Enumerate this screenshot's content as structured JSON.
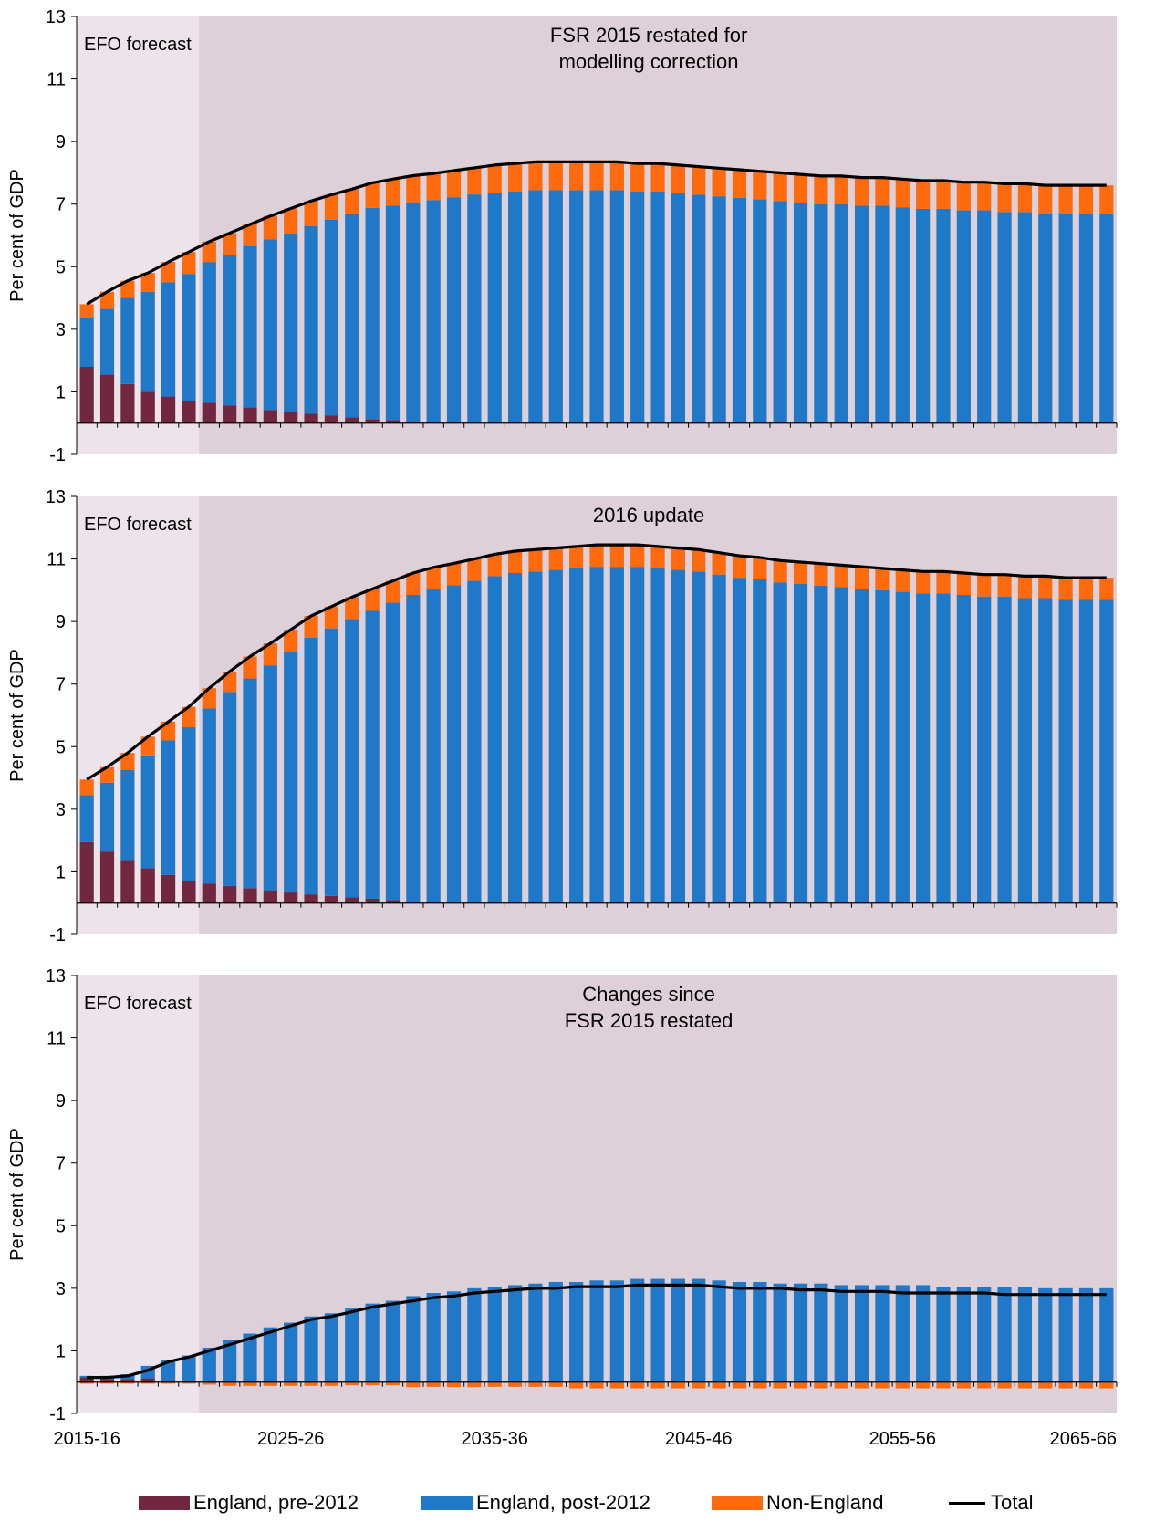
{
  "colors": {
    "pre2012": "#722741",
    "post2012": "#1f78c8",
    "nonengland": "#ff6a0d",
    "total": "#000000",
    "efo_shade": "#ece4ea",
    "proj_shade": "#ddd0d8"
  },
  "legend": {
    "pre2012": "England, pre-2012",
    "post2012": "England, post-2012",
    "nonengland": "Non-England",
    "total": "Total"
  },
  "chart_data": [
    {
      "type": "bar",
      "title": "FSR 2015 restated for\nmodelling correction",
      "shade_label": "EFO forecast",
      "ylabel": "Per cent of GDP",
      "ylim": [
        -1,
        13
      ],
      "yticks": [
        "13",
        "11",
        "9",
        "7",
        "5",
        "3",
        "1",
        "-1"
      ],
      "x_start_year": 2015,
      "x_count": 51,
      "xtick_labels": [
        "2015-16",
        "2025-26",
        "2035-36",
        "2045-46",
        "2055-56",
        "2065-66"
      ],
      "series": [
        {
          "name": "England, pre-2012",
          "values": [
            1.8,
            1.55,
            1.25,
            1.0,
            0.85,
            0.72,
            0.65,
            0.57,
            0.5,
            0.42,
            0.36,
            0.3,
            0.25,
            0.18,
            0.13,
            0.1,
            0.06,
            0.03,
            0.02,
            0.01,
            0,
            0,
            0,
            0,
            0,
            0,
            0,
            0,
            0,
            0,
            0,
            0,
            0,
            0,
            0,
            0,
            0,
            0,
            0,
            0,
            0,
            0,
            0,
            0,
            0,
            0,
            0,
            0,
            0,
            0,
            0
          ]
        },
        {
          "name": "England, post-2012",
          "values": [
            1.55,
            2.1,
            2.75,
            3.2,
            3.65,
            4.05,
            4.5,
            4.8,
            5.15,
            5.45,
            5.7,
            6.0,
            6.25,
            6.5,
            6.75,
            6.85,
            7.0,
            7.1,
            7.2,
            7.3,
            7.35,
            7.4,
            7.45,
            7.45,
            7.45,
            7.45,
            7.45,
            7.4,
            7.4,
            7.35,
            7.3,
            7.25,
            7.2,
            7.15,
            7.1,
            7.05,
            7.0,
            7.0,
            6.95,
            6.95,
            6.9,
            6.85,
            6.85,
            6.8,
            6.8,
            6.75,
            6.75,
            6.7,
            6.7,
            6.7,
            6.7
          ]
        },
        {
          "name": "Non-England",
          "values": [
            0.45,
            0.55,
            0.55,
            0.6,
            0.65,
            0.7,
            0.65,
            0.7,
            0.7,
            0.75,
            0.8,
            0.8,
            0.8,
            0.8,
            0.8,
            0.85,
            0.85,
            0.85,
            0.85,
            0.85,
            0.9,
            0.9,
            0.9,
            0.9,
            0.9,
            0.9,
            0.9,
            0.9,
            0.9,
            0.9,
            0.9,
            0.9,
            0.9,
            0.9,
            0.9,
            0.9,
            0.9,
            0.9,
            0.9,
            0.9,
            0.9,
            0.9,
            0.9,
            0.9,
            0.9,
            0.9,
            0.9,
            0.9,
            0.9,
            0.9,
            0.9
          ]
        },
        {
          "name": "Total",
          "type": "line",
          "values": [
            3.8,
            4.2,
            4.55,
            4.8,
            5.15,
            5.47,
            5.8,
            6.07,
            6.35,
            6.62,
            6.86,
            7.1,
            7.3,
            7.48,
            7.68,
            7.8,
            7.91,
            7.98,
            8.07,
            8.16,
            8.25,
            8.3,
            8.35,
            8.35,
            8.35,
            8.35,
            8.35,
            8.3,
            8.3,
            8.25,
            8.2,
            8.15,
            8.1,
            8.05,
            8.0,
            7.95,
            7.9,
            7.9,
            7.85,
            7.85,
            7.8,
            7.75,
            7.75,
            7.7,
            7.7,
            7.65,
            7.65,
            7.6,
            7.6,
            7.6,
            7.6
          ]
        }
      ]
    },
    {
      "type": "bar",
      "title": "2016 update",
      "shade_label": "EFO forecast",
      "ylabel": "Per cent of GDP",
      "ylim": [
        -1,
        13
      ],
      "yticks": [
        "13",
        "11",
        "9",
        "7",
        "5",
        "3",
        "1",
        "-1"
      ],
      "x_start_year": 2015,
      "x_count": 51,
      "xtick_labels": [
        "2015-16",
        "2025-26",
        "2035-36",
        "2045-46",
        "2055-56",
        "2065-66"
      ],
      "series": [
        {
          "name": "England, pre-2012",
          "values": [
            1.95,
            1.65,
            1.35,
            1.12,
            0.9,
            0.72,
            0.62,
            0.55,
            0.48,
            0.4,
            0.34,
            0.28,
            0.23,
            0.18,
            0.14,
            0.1,
            0.05,
            0.03,
            0.01,
            0,
            0,
            0,
            0,
            0,
            0,
            0,
            0,
            0,
            0,
            0,
            0,
            0,
            0,
            0,
            0,
            0,
            0,
            0,
            0,
            0,
            0,
            0,
            0,
            0,
            0,
            0,
            0,
            0,
            0,
            0,
            0
          ]
        },
        {
          "name": "England, post-2012",
          "values": [
            1.5,
            2.2,
            2.9,
            3.6,
            4.3,
            4.9,
            5.6,
            6.2,
            6.7,
            7.2,
            7.7,
            8.2,
            8.55,
            8.9,
            9.2,
            9.5,
            9.8,
            10.0,
            10.15,
            10.3,
            10.45,
            10.55,
            10.6,
            10.65,
            10.7,
            10.75,
            10.75,
            10.75,
            10.7,
            10.65,
            10.6,
            10.5,
            10.4,
            10.35,
            10.25,
            10.2,
            10.15,
            10.1,
            10.05,
            10.0,
            9.95,
            9.9,
            9.9,
            9.85,
            9.8,
            9.8,
            9.75,
            9.75,
            9.7,
            9.7,
            9.7
          ]
        },
        {
          "name": "Non-England",
          "values": [
            0.5,
            0.5,
            0.55,
            0.6,
            0.6,
            0.65,
            0.65,
            0.65,
            0.7,
            0.7,
            0.7,
            0.7,
            0.7,
            0.7,
            0.7,
            0.7,
            0.7,
            0.7,
            0.7,
            0.7,
            0.7,
            0.7,
            0.7,
            0.7,
            0.7,
            0.7,
            0.7,
            0.7,
            0.7,
            0.7,
            0.7,
            0.7,
            0.7,
            0.7,
            0.7,
            0.7,
            0.7,
            0.7,
            0.7,
            0.7,
            0.7,
            0.7,
            0.7,
            0.7,
            0.7,
            0.7,
            0.7,
            0.7,
            0.7,
            0.7,
            0.7
          ]
        },
        {
          "name": "Total",
          "type": "line",
          "values": [
            3.95,
            4.35,
            4.8,
            5.32,
            5.8,
            6.27,
            6.87,
            7.4,
            7.88,
            8.3,
            8.74,
            9.18,
            9.48,
            9.78,
            10.04,
            10.3,
            10.55,
            10.73,
            10.86,
            11.0,
            11.15,
            11.25,
            11.3,
            11.35,
            11.4,
            11.45,
            11.45,
            11.45,
            11.4,
            11.35,
            11.3,
            11.2,
            11.1,
            11.05,
            10.95,
            10.9,
            10.85,
            10.8,
            10.75,
            10.7,
            10.65,
            10.6,
            10.6,
            10.55,
            10.5,
            10.5,
            10.45,
            10.45,
            10.4,
            10.4,
            10.4
          ]
        }
      ]
    },
    {
      "type": "bar",
      "title": "Changes since\nFSR 2015 restated",
      "shade_label": "EFO forecast",
      "ylabel": "Per cent of GDP",
      "ylim": [
        -1,
        13
      ],
      "yticks": [
        "13",
        "11",
        "9",
        "7",
        "5",
        "3",
        "1",
        "-1"
      ],
      "x_start_year": 2015,
      "x_count": 51,
      "xtick_labels": [
        "2015-16",
        "2025-26",
        "2035-36",
        "2045-46",
        "2055-56",
        "2065-66"
      ],
      "series": [
        {
          "name": "England, pre-2012",
          "values": [
            0.15,
            0.1,
            0.1,
            0.12,
            0.05,
            0.0,
            -0.03,
            -0.02,
            -0.02,
            -0.02,
            -0.02,
            -0.02,
            -0.02,
            0,
            0.01,
            0,
            -0.01,
            0,
            -0.01,
            -0.01,
            0,
            0,
            0,
            0,
            0,
            0,
            0,
            0,
            0,
            0,
            0,
            0,
            0,
            0,
            0,
            0,
            0,
            0,
            0,
            0,
            0,
            0,
            0,
            0,
            0,
            0,
            0,
            0,
            0,
            0,
            0
          ]
        },
        {
          "name": "England, post-2012",
          "values": [
            0.05,
            0.1,
            0.15,
            0.4,
            0.65,
            0.85,
            1.1,
            1.35,
            1.55,
            1.75,
            1.9,
            2.1,
            2.2,
            2.35,
            2.5,
            2.6,
            2.75,
            2.85,
            2.9,
            3.0,
            3.05,
            3.1,
            3.15,
            3.2,
            3.2,
            3.25,
            3.25,
            3.3,
            3.3,
            3.3,
            3.3,
            3.25,
            3.2,
            3.2,
            3.15,
            3.15,
            3.15,
            3.1,
            3.1,
            3.1,
            3.1,
            3.1,
            3.05,
            3.05,
            3.05,
            3.05,
            3.05,
            3.0,
            3.0,
            3.0,
            3.0
          ]
        },
        {
          "name": "Non-England",
          "values": [
            -0.05,
            -0.05,
            -0.05,
            -0.05,
            -0.05,
            -0.05,
            -0.05,
            -0.1,
            -0.1,
            -0.1,
            -0.1,
            -0.1,
            -0.1,
            -0.1,
            -0.1,
            -0.1,
            -0.15,
            -0.15,
            -0.15,
            -0.15,
            -0.15,
            -0.15,
            -0.15,
            -0.15,
            -0.2,
            -0.2,
            -0.2,
            -0.2,
            -0.2,
            -0.2,
            -0.2,
            -0.2,
            -0.2,
            -0.2,
            -0.2,
            -0.2,
            -0.2,
            -0.2,
            -0.2,
            -0.2,
            -0.2,
            -0.2,
            -0.2,
            -0.2,
            -0.2,
            -0.2,
            -0.2,
            -0.2,
            -0.2,
            -0.2,
            -0.2
          ]
        },
        {
          "name": "Total",
          "type": "line",
          "values": [
            0.15,
            0.15,
            0.2,
            0.38,
            0.65,
            0.8,
            1.0,
            1.2,
            1.4,
            1.6,
            1.8,
            2.0,
            2.1,
            2.25,
            2.4,
            2.5,
            2.6,
            2.7,
            2.75,
            2.85,
            2.9,
            2.95,
            3.0,
            3.0,
            3.05,
            3.05,
            3.05,
            3.1,
            3.1,
            3.1,
            3.1,
            3.05,
            3.0,
            3.0,
            3.0,
            2.95,
            2.95,
            2.9,
            2.9,
            2.9,
            2.85,
            2.85,
            2.85,
            2.85,
            2.85,
            2.8,
            2.8,
            2.8,
            2.8,
            2.8,
            2.8
          ]
        }
      ]
    }
  ]
}
